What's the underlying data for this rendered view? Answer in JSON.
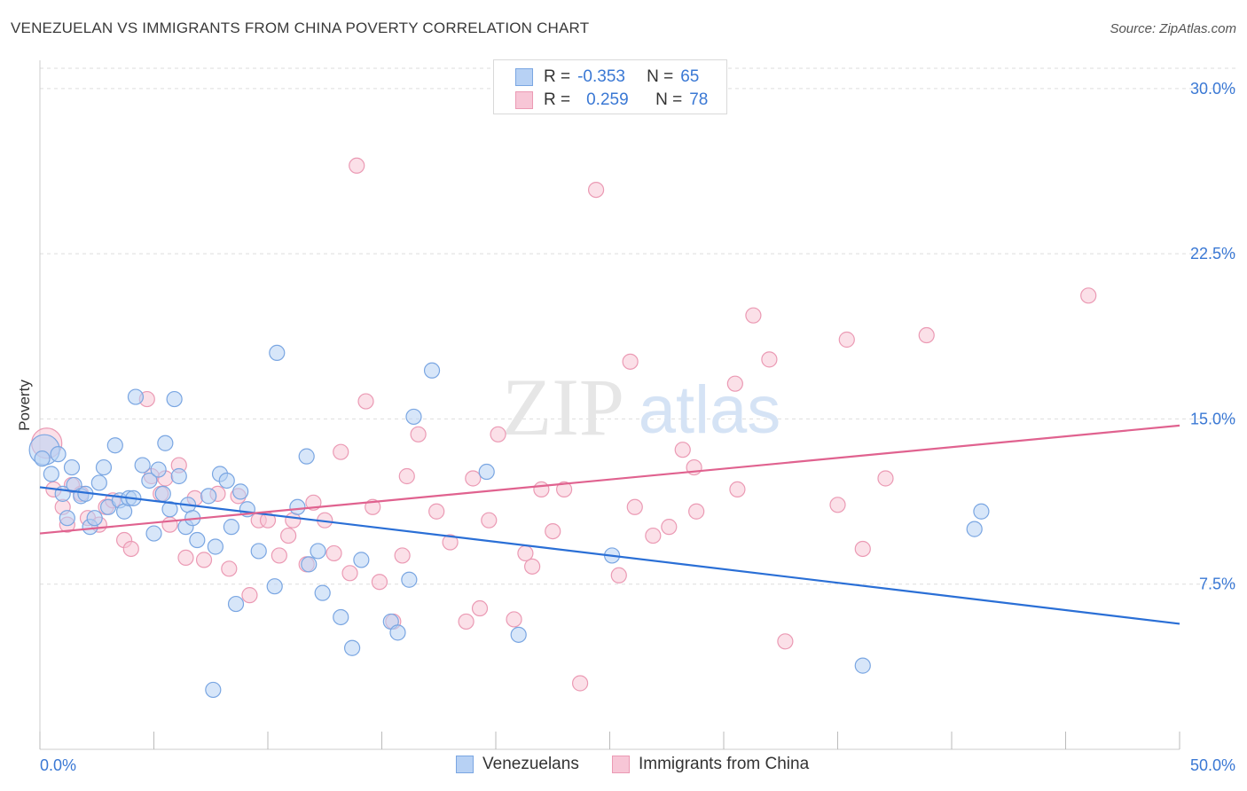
{
  "title": "VENEZUELAN VS IMMIGRANTS FROM CHINA POVERTY CORRELATION CHART",
  "source": "Source: ZipAtlas.com",
  "watermark": {
    "zip": "ZIP",
    "atlas": "atlas"
  },
  "legend": {
    "rows": [
      {
        "r_label": "R =",
        "r_value": "-0.353",
        "n_label": "N =",
        "n_value": "65"
      },
      {
        "r_label": "R =",
        "r_value": "0.259",
        "n_label": "N =",
        "n_value": "78"
      }
    ]
  },
  "colors": {
    "blue_fill": "#b7d1f4",
    "blue_stroke": "#7aa6e2",
    "blue_line": "#2a6fd6",
    "pink_fill": "#f7c6d6",
    "pink_stroke": "#eb9ab4",
    "pink_line": "#e0628f",
    "tick_label": "#3a78d4",
    "grid": "#dddddd"
  },
  "chart_data": {
    "type": "scatter",
    "title": "VENEZUELAN VS IMMIGRANTS FROM CHINA POVERTY CORRELATION CHART",
    "xlabel": "",
    "ylabel": "Poverty",
    "xlim": [
      0,
      50
    ],
    "ylim": [
      0,
      31
    ],
    "x_tick_labels": [
      "0.0%",
      "50.0%"
    ],
    "y_ticks": [
      7.5,
      15.0,
      22.5,
      30.0
    ],
    "y_tick_labels": [
      "7.5%",
      "15.0%",
      "22.5%",
      "30.0%"
    ],
    "grid": true,
    "series": [
      {
        "name": "Venezuelans",
        "color": "#7aa6e2",
        "trend": {
          "x": [
            0,
            50
          ],
          "y": [
            11.9,
            5.7
          ]
        },
        "points": [
          [
            0.2,
            13.6
          ],
          [
            0.5,
            12.5
          ],
          [
            0.8,
            13.4
          ],
          [
            1.0,
            11.6
          ],
          [
            1.2,
            10.5
          ],
          [
            1.4,
            12.8
          ],
          [
            1.5,
            12.0
          ],
          [
            1.8,
            11.5
          ],
          [
            2.0,
            11.6
          ],
          [
            2.2,
            10.1
          ],
          [
            2.4,
            10.5
          ],
          [
            2.6,
            12.1
          ],
          [
            2.8,
            12.8
          ],
          [
            3.0,
            11.0
          ],
          [
            3.3,
            13.8
          ],
          [
            3.5,
            11.3
          ],
          [
            3.7,
            10.8
          ],
          [
            3.9,
            11.4
          ],
          [
            4.1,
            11.4
          ],
          [
            4.2,
            16.0
          ],
          [
            4.5,
            12.9
          ],
          [
            4.8,
            12.2
          ],
          [
            5.0,
            9.8
          ],
          [
            5.2,
            12.7
          ],
          [
            5.4,
            11.6
          ],
          [
            5.5,
            13.9
          ],
          [
            5.7,
            10.9
          ],
          [
            5.9,
            15.9
          ],
          [
            6.1,
            12.4
          ],
          [
            6.4,
            10.1
          ],
          [
            6.5,
            11.1
          ],
          [
            6.7,
            10.5
          ],
          [
            6.9,
            9.5
          ],
          [
            7.4,
            11.5
          ],
          [
            7.6,
            2.7
          ],
          [
            7.7,
            9.2
          ],
          [
            7.9,
            12.5
          ],
          [
            8.2,
            12.2
          ],
          [
            8.4,
            10.1
          ],
          [
            8.6,
            6.6
          ],
          [
            8.8,
            11.7
          ],
          [
            9.1,
            10.9
          ],
          [
            9.6,
            9.0
          ],
          [
            10.3,
            7.4
          ],
          [
            10.4,
            18.0
          ],
          [
            11.3,
            11.0
          ],
          [
            11.7,
            13.3
          ],
          [
            11.8,
            8.4
          ],
          [
            12.2,
            9.0
          ],
          [
            12.4,
            7.1
          ],
          [
            13.2,
            6.0
          ],
          [
            13.7,
            4.6
          ],
          [
            14.1,
            8.6
          ],
          [
            15.4,
            5.8
          ],
          [
            15.7,
            5.3
          ],
          [
            16.2,
            7.7
          ],
          [
            16.4,
            15.1
          ],
          [
            17.2,
            17.2
          ],
          [
            19.6,
            12.6
          ],
          [
            21.0,
            5.2
          ],
          [
            25.1,
            8.8
          ],
          [
            36.1,
            3.8
          ],
          [
            41.0,
            10.0
          ],
          [
            41.3,
            10.8
          ],
          [
            0.1,
            13.2
          ]
        ]
      },
      {
        "name": "Immigrants from China",
        "color": "#eb9ab4",
        "trend": {
          "x": [
            0,
            50
          ],
          "y": [
            9.8,
            14.7
          ]
        },
        "points": [
          [
            0.3,
            13.9
          ],
          [
            0.6,
            11.8
          ],
          [
            1.0,
            11.0
          ],
          [
            1.4,
            12.0
          ],
          [
            1.8,
            11.6
          ],
          [
            2.1,
            10.5
          ],
          [
            2.6,
            10.2
          ],
          [
            2.9,
            11.0
          ],
          [
            3.2,
            11.3
          ],
          [
            3.7,
            9.5
          ],
          [
            4.0,
            9.1
          ],
          [
            4.7,
            15.9
          ],
          [
            4.9,
            12.4
          ],
          [
            5.3,
            11.6
          ],
          [
            5.7,
            10.2
          ],
          [
            6.1,
            12.9
          ],
          [
            6.4,
            8.7
          ],
          [
            6.8,
            11.4
          ],
          [
            7.2,
            8.6
          ],
          [
            7.8,
            11.6
          ],
          [
            8.3,
            8.2
          ],
          [
            8.7,
            11.5
          ],
          [
            9.2,
            7.0
          ],
          [
            9.6,
            10.4
          ],
          [
            10.0,
            10.4
          ],
          [
            10.5,
            8.8
          ],
          [
            10.9,
            9.7
          ],
          [
            11.1,
            10.4
          ],
          [
            11.7,
            8.4
          ],
          [
            12.0,
            11.2
          ],
          [
            12.5,
            10.4
          ],
          [
            12.9,
            8.9
          ],
          [
            13.2,
            13.5
          ],
          [
            13.6,
            8.0
          ],
          [
            13.9,
            26.5
          ],
          [
            14.3,
            15.8
          ],
          [
            14.6,
            11.0
          ],
          [
            14.9,
            7.6
          ],
          [
            15.5,
            5.8
          ],
          [
            15.9,
            8.8
          ],
          [
            16.1,
            12.4
          ],
          [
            16.6,
            14.3
          ],
          [
            17.4,
            10.8
          ],
          [
            18.0,
            9.4
          ],
          [
            18.7,
            5.8
          ],
          [
            19.0,
            12.3
          ],
          [
            19.3,
            6.4
          ],
          [
            19.7,
            10.4
          ],
          [
            20.1,
            14.3
          ],
          [
            20.8,
            5.9
          ],
          [
            21.3,
            8.9
          ],
          [
            21.6,
            8.3
          ],
          [
            22.0,
            11.8
          ],
          [
            22.5,
            9.9
          ],
          [
            23.0,
            11.8
          ],
          [
            23.7,
            3.0
          ],
          [
            24.4,
            25.4
          ],
          [
            25.4,
            7.9
          ],
          [
            25.9,
            17.6
          ],
          [
            26.1,
            11.0
          ],
          [
            26.9,
            9.7
          ],
          [
            27.6,
            10.1
          ],
          [
            28.2,
            13.6
          ],
          [
            28.7,
            12.8
          ],
          [
            28.8,
            10.8
          ],
          [
            30.5,
            16.6
          ],
          [
            30.6,
            11.8
          ],
          [
            31.3,
            19.7
          ],
          [
            32.0,
            17.7
          ],
          [
            32.7,
            4.9
          ],
          [
            35.0,
            11.1
          ],
          [
            35.4,
            18.6
          ],
          [
            36.1,
            9.1
          ],
          [
            37.1,
            12.3
          ],
          [
            38.9,
            18.8
          ],
          [
            46.0,
            20.6
          ],
          [
            1.2,
            10.2
          ],
          [
            5.5,
            12.3
          ]
        ]
      }
    ]
  },
  "bottom_legend": [
    {
      "label": "Venezuelans"
    },
    {
      "label": "Immigrants from China"
    }
  ]
}
